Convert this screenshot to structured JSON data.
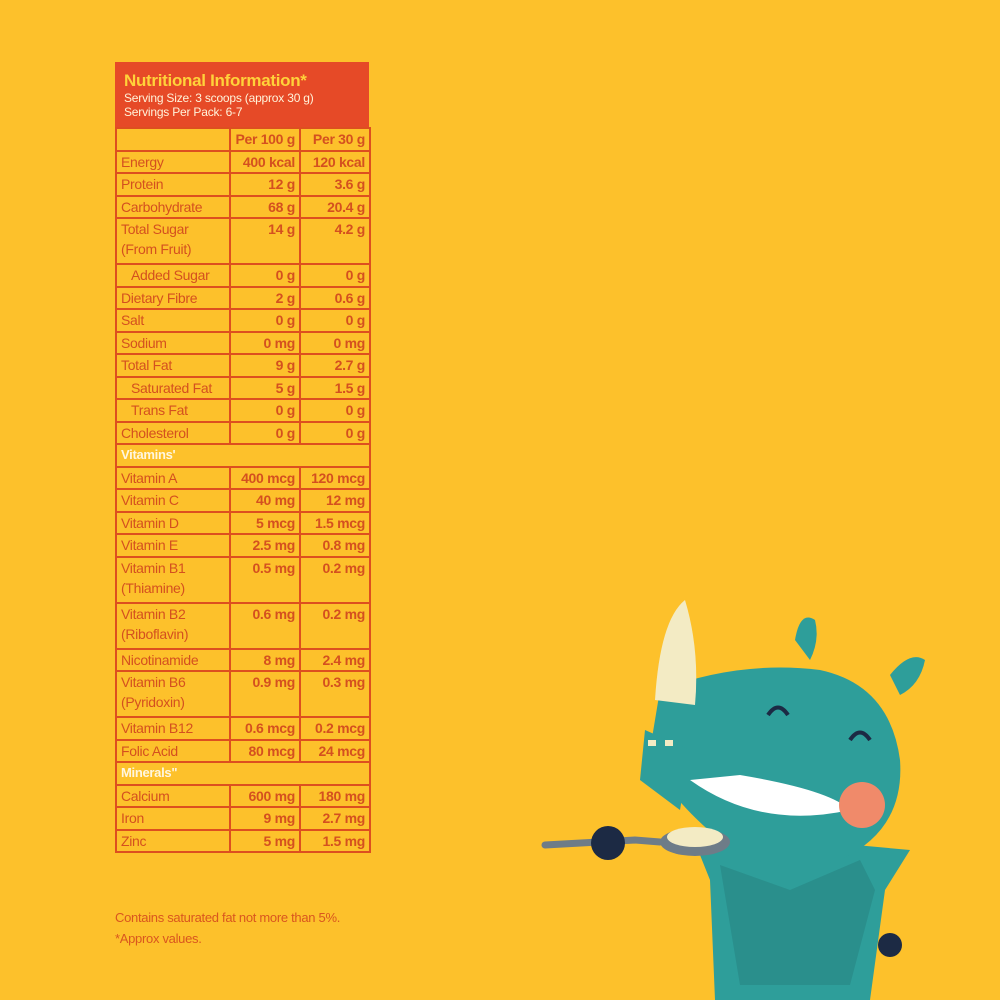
{
  "title": "Nutritional Information*",
  "serving_size": "Serving Size: 3 scoops (approx 30 g)",
  "servings_per_pack": "Servings Per Pack: 6-7",
  "columns": [
    "",
    "Per 100 g",
    "Per 30 g"
  ],
  "rows": [
    {
      "name": "Energy",
      "per100": "400 kcal",
      "per30": "120 kcal"
    },
    {
      "name": "Protein",
      "per100": "12 g",
      "per30": "3.6 g"
    },
    {
      "name": "Carbohydrate",
      "per100": "68 g",
      "per30": "20.4 g"
    },
    {
      "name": "Total Sugar (From Fruit)",
      "per100": "14 g",
      "per30": "4.2 g",
      "double": true
    },
    {
      "name": "Added Sugar",
      "per100": "0 g",
      "per30": "0 g",
      "indent": true
    },
    {
      "name": "Dietary Fibre",
      "per100": "2 g",
      "per30": "0.6 g"
    },
    {
      "name": "Salt",
      "per100": "0 g",
      "per30": "0 g"
    },
    {
      "name": "Sodium",
      "per100": "0 mg",
      "per30": "0 mg"
    },
    {
      "name": "Total Fat",
      "per100": "9 g",
      "per30": "2.7 g"
    },
    {
      "name": "Saturated Fat",
      "per100": "5 g",
      "per30": "1.5 g",
      "indent": true
    },
    {
      "name": "Trans Fat",
      "per100": "0 g",
      "per30": "0 g",
      "indent": true
    },
    {
      "name": "Cholesterol",
      "per100": "0 g",
      "per30": "0 g"
    },
    {
      "section": "Vitamins'"
    },
    {
      "name": "Vitamin A",
      "per100": "400 mcg",
      "per30": "120 mcg"
    },
    {
      "name": "Vitamin C",
      "per100": "40 mg",
      "per30": "12 mg"
    },
    {
      "name": "Vitamin D",
      "per100": "5 mcg",
      "per30": "1.5 mcg"
    },
    {
      "name": "Vitamin E",
      "per100": "2.5 mg",
      "per30": "0.8 mg"
    },
    {
      "name": "Vitamin B1 (Thiamine)",
      "per100": "0.5 mg",
      "per30": "0.2 mg",
      "double": true
    },
    {
      "name": "Vitamin B2 (Riboflavin)",
      "per100": "0.6 mg",
      "per30": "0.2 mg",
      "double": true
    },
    {
      "name": "Nicotinamide",
      "per100": "8 mg",
      "per30": "2.4 mg"
    },
    {
      "name": "Vitamin B6 (Pyridoxin)",
      "per100": "0.9 mg",
      "per30": "0.3 mg",
      "double": true
    },
    {
      "name": "Vitamin B12",
      "per100": "0.6 mcg",
      "per30": "0.2 mcg"
    },
    {
      "name": "Folic Acid",
      "per100": "80 mcg",
      "per30": "24 mcg"
    },
    {
      "section": "Minerals\""
    },
    {
      "name": "Calcium",
      "per100": "600 mg",
      "per30": "180 mg"
    },
    {
      "name": "Iron",
      "per100": "9 mg",
      "per30": "2.7 mg"
    },
    {
      "name": "Zinc",
      "per100": "5 mg",
      "per30": "1.5 mg"
    }
  ],
  "footnotes": [
    "Contains saturated fat not more than 5%.",
    "*Approx values."
  ],
  "colors": {
    "background": "#FDC12B",
    "header": "#E64A27",
    "text": "#D4501F",
    "mascot": "#2E9E9A"
  },
  "mascot": "rhino-eating-with-spoon"
}
